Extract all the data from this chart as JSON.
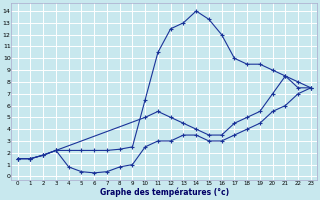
{
  "xlabel": "Graphe des températures (°c)",
  "bg_color": "#c8e8ee",
  "grid_color": "#ffffff",
  "line_color": "#1a3399",
  "xlim": [
    -0.5,
    23.5
  ],
  "ylim": [
    -0.3,
    14.7
  ],
  "xticks": [
    0,
    1,
    2,
    3,
    4,
    5,
    6,
    7,
    8,
    9,
    10,
    11,
    12,
    13,
    14,
    15,
    16,
    17,
    18,
    19,
    20,
    21,
    22,
    23
  ],
  "yticks": [
    0,
    1,
    2,
    3,
    4,
    5,
    6,
    7,
    8,
    9,
    10,
    11,
    12,
    13,
    14
  ],
  "line1_x": [
    0,
    1,
    2,
    3,
    4,
    5,
    6,
    7,
    8,
    9,
    10,
    11,
    12,
    13,
    14,
    15,
    16,
    17,
    18,
    19,
    20,
    21,
    22,
    23
  ],
  "line1_y": [
    1.5,
    1.5,
    1.8,
    2.2,
    0.8,
    0.4,
    0.3,
    0.4,
    0.8,
    1.0,
    2.5,
    3.0,
    3.0,
    3.5,
    3.5,
    3.0,
    3.0,
    3.5,
    4.0,
    4.5,
    5.5,
    6.0,
    7.0,
    7.5
  ],
  "line2_x": [
    0,
    1,
    2,
    3,
    4,
    5,
    6,
    7,
    8,
    9,
    10,
    11,
    12,
    13,
    14,
    15,
    16,
    17,
    18,
    19,
    20,
    21,
    22,
    23
  ],
  "line2_y": [
    1.5,
    1.5,
    1.8,
    2.2,
    2.2,
    2.2,
    2.2,
    2.2,
    2.3,
    2.5,
    6.5,
    10.5,
    12.5,
    13.0,
    14.0,
    13.3,
    12.0,
    10.0,
    9.5,
    9.5,
    9.0,
    8.5,
    7.5,
    7.5
  ],
  "line3_x": [
    0,
    1,
    2,
    3,
    10,
    11,
    12,
    13,
    14,
    15,
    16,
    17,
    18,
    19,
    20,
    21,
    22,
    23
  ],
  "line3_y": [
    1.5,
    1.5,
    1.8,
    2.2,
    5.0,
    5.5,
    5.0,
    4.5,
    4.0,
    3.5,
    3.5,
    4.5,
    5.0,
    5.5,
    7.0,
    8.5,
    8.0,
    7.5
  ]
}
